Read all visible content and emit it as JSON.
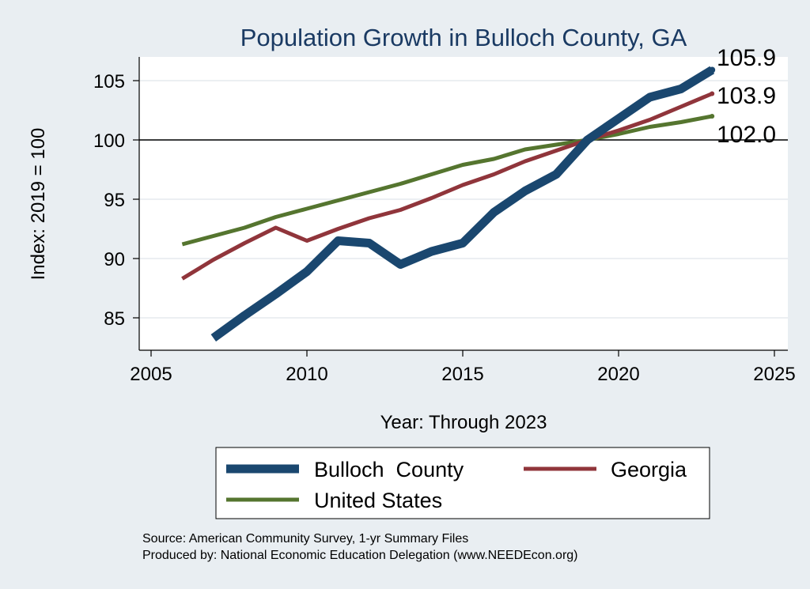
{
  "chart_data": {
    "type": "line",
    "title": "Population Growth in Bulloch County, GA",
    "xlabel": "Year: Through 2023",
    "ylabel": "Index: 2019 = 100",
    "xlim": [
      2005,
      2025
    ],
    "ylim": [
      82,
      107
    ],
    "xticks": [
      2005,
      2010,
      2015,
      2020,
      2025
    ],
    "yticks": [
      85,
      90,
      95,
      100,
      105
    ],
    "reference_line": 100,
    "series": [
      {
        "name": "Bulloch  County",
        "color": "#1a476f",
        "x": [
          2007,
          2008,
          2009,
          2010,
          2011,
          2012,
          2013,
          2014,
          2015,
          2016,
          2017,
          2018,
          2019,
          2020,
          2021,
          2022,
          2023
        ],
        "values": [
          83.3,
          85.2,
          87.0,
          88.9,
          91.5,
          91.3,
          89.5,
          90.6,
          91.3,
          93.9,
          95.7,
          97.1,
          100.0,
          101.8,
          103.6,
          104.3,
          105.9
        ],
        "end_label": "105.9"
      },
      {
        "name": "Georgia",
        "color": "#90353b",
        "x": [
          2006,
          2007,
          2008,
          2009,
          2010,
          2011,
          2012,
          2013,
          2014,
          2015,
          2016,
          2017,
          2018,
          2019,
          2020,
          2021,
          2022,
          2023
        ],
        "values": [
          88.3,
          89.9,
          91.3,
          92.6,
          91.5,
          92.5,
          93.4,
          94.1,
          95.1,
          96.2,
          97.1,
          98.2,
          99.1,
          100.0,
          100.8,
          101.7,
          102.8,
          103.9
        ],
        "end_label": "103.9"
      },
      {
        "name": "United States",
        "color": "#55752f",
        "x": [
          2006,
          2007,
          2008,
          2009,
          2010,
          2011,
          2012,
          2013,
          2014,
          2015,
          2016,
          2017,
          2018,
          2019,
          2020,
          2021,
          2022,
          2023
        ],
        "values": [
          91.2,
          91.9,
          92.6,
          93.5,
          94.2,
          94.9,
          95.6,
          96.3,
          97.1,
          97.9,
          98.4,
          99.2,
          99.6,
          100.0,
          100.5,
          101.1,
          101.5,
          102.0
        ],
        "end_label": "102.0"
      }
    ],
    "legend_position": "bottom",
    "source_lines": [
      "Source: American Community Survey, 1-yr Summary Files",
      "Produced by: National Economic Education Delegation (www.NEEDEcon.org)"
    ]
  }
}
